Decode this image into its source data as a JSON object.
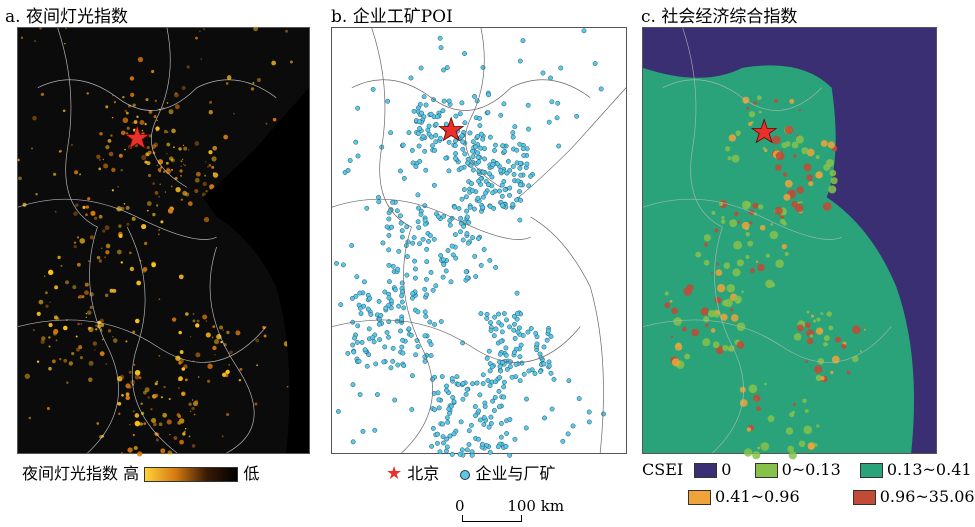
{
  "panels": {
    "a": {
      "title": "a. 夜间灯光指数"
    },
    "b": {
      "title": "b. 企业工矿POI"
    },
    "c": {
      "title": "c. 社会经济综合指数"
    }
  },
  "legend_a": {
    "label": "夜间灯光指数",
    "high": "高",
    "low": "低"
  },
  "legend_b": {
    "beijing": "北京",
    "poi": "企业与厂矿"
  },
  "legend_c": {
    "title": "CSEI",
    "classes": [
      "0",
      "0~0.13",
      "0.13~0.41",
      "0.41~0.96",
      "0.96~35.06"
    ]
  },
  "scale_bar": {
    "zero": "0",
    "end": "100 km"
  },
  "colors": {
    "night_bg": "#0b0b0b",
    "night_light": "#ffc21a",
    "poi": "#5cc8e8",
    "star": "#e8312a",
    "csei": [
      "#3a2f73",
      "#86c24a",
      "#2aa37a",
      "#f0a33a",
      "#c24a36"
    ]
  }
}
